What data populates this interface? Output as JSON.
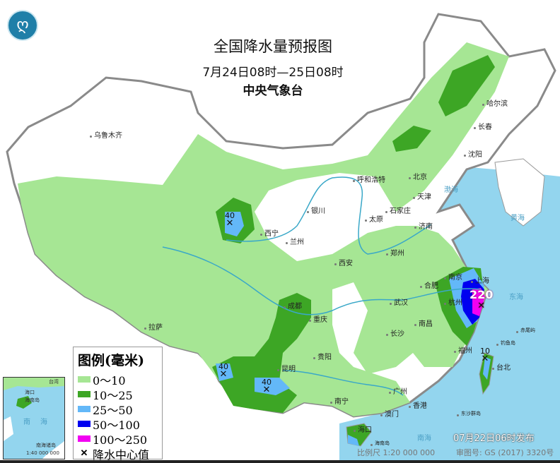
{
  "header": {
    "title": "全国降水量预报图",
    "period": "7月24日08时—25日08时",
    "issuer": "中央气象台",
    "logo_icon": "cma-logo-icon"
  },
  "legend": {
    "title": "图例(毫米)",
    "items": [
      {
        "label": "0～10",
        "color": "#a6e694"
      },
      {
        "label": "10～25",
        "color": "#3da625"
      },
      {
        "label": "25～50",
        "color": "#63b8f8"
      },
      {
        "label": "50～100",
        "color": "#0000f0"
      },
      {
        "label": "100～250",
        "color": "#f200f2"
      }
    ],
    "center_label": "降水中心值",
    "center_icon": "x-mark-icon"
  },
  "cities": [
    "乌鲁木齐",
    "哈尔滨",
    "长春",
    "沈阳",
    "呼和浩特",
    "北京",
    "天津",
    "银川",
    "太原",
    "石家庄",
    "济南",
    "西宁",
    "兰州",
    "郑州",
    "西安",
    "拉萨",
    "成都",
    "重庆",
    "武汉",
    "合肥",
    "南京",
    "上海",
    "杭州",
    "长沙",
    "南昌",
    "贵阳",
    "昆明",
    "福州",
    "台北",
    "南宁",
    "广州",
    "香港",
    "澳门",
    "海口"
  ],
  "seas": [
    "渤海",
    "黄海",
    "东海",
    "南海"
  ],
  "islands": [
    "钓鱼岛",
    "赤尾屿",
    "东沙群岛",
    "海南岛"
  ],
  "rainfall_centers": [
    "40",
    "40",
    "40",
    "220",
    "10"
  ],
  "inset": {
    "labels": [
      "海口",
      "海南岛",
      "南",
      "海",
      "台湾",
      "南海诸岛",
      "1:40 000 000"
    ]
  },
  "footer": {
    "issued": "07月22日06时发布",
    "scale": "比例尺 1:20 000 000",
    "map_approval": "审图号: GS (2017) 3320号"
  }
}
